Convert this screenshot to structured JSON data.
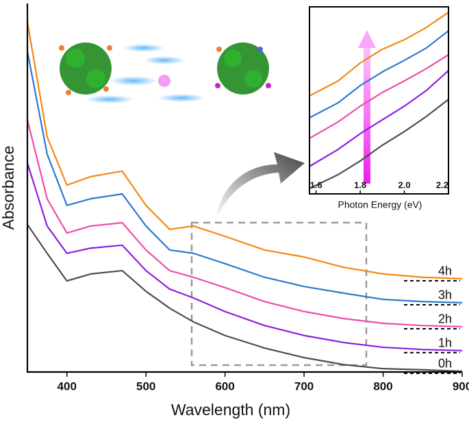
{
  "chart_data": [
    {
      "type": "line",
      "x_label": "Wavelength (nm)",
      "y_label": "Absorbance",
      "x": [
        350,
        375,
        400,
        430,
        470,
        500,
        530,
        560,
        600,
        650,
        700,
        750,
        800,
        850,
        900
      ],
      "xlim": [
        350,
        900
      ],
      "xticks": [
        400,
        500,
        600,
        700,
        800,
        900
      ],
      "ylim": [
        0,
        1
      ],
      "series": [
        {
          "name": "4h",
          "color": "#f5870f",
          "values": [
            0.95,
            0.638,
            0.507,
            0.53,
            0.545,
            0.452,
            0.387,
            0.396,
            0.368,
            0.331,
            0.312,
            0.284,
            0.266,
            0.257,
            0.253
          ]
        },
        {
          "name": "3h",
          "color": "#2b78d0",
          "values": [
            0.87,
            0.591,
            0.452,
            0.47,
            0.483,
            0.396,
            0.331,
            0.322,
            0.294,
            0.257,
            0.232,
            0.214,
            0.197,
            0.191,
            0.188
          ]
        },
        {
          "name": "2h",
          "color": "#f04aa8",
          "values": [
            0.684,
            0.47,
            0.377,
            0.396,
            0.405,
            0.331,
            0.275,
            0.257,
            0.229,
            0.191,
            0.164,
            0.145,
            0.132,
            0.126,
            0.123
          ]
        },
        {
          "name": "1h",
          "color": "#8a1ee0",
          "values": [
            0.567,
            0.396,
            0.322,
            0.336,
            0.344,
            0.275,
            0.225,
            0.201,
            0.164,
            0.126,
            0.099,
            0.08,
            0.067,
            0.061,
            0.058
          ]
        },
        {
          "name": "0h",
          "color": "#4d4d4d",
          "values": [
            0.4,
            0.322,
            0.247,
            0.266,
            0.275,
            0.219,
            0.173,
            0.136,
            0.099,
            0.065,
            0.039,
            0.02,
            0.009,
            0.006,
            0.002
          ]
        }
      ]
    },
    {
      "type": "line",
      "x_label": "Photon Energy (eV)",
      "x": [
        1.57,
        1.7,
        1.8,
        1.9,
        2.0,
        2.1,
        2.2
      ],
      "xlim": [
        1.57,
        2.2
      ],
      "xticks": [
        1.6,
        1.8,
        {
          "value": 2.0,
          "label": "2.0"
        },
        2.2
      ],
      "ylim": [
        0,
        1
      ],
      "series": [
        {
          "color": "#f5870f",
          "values": [
            0.524,
            0.604,
            0.7,
            0.773,
            0.824,
            0.89,
            0.971
          ]
        },
        {
          "color": "#2b78d0",
          "values": [
            0.407,
            0.487,
            0.579,
            0.652,
            0.714,
            0.78,
            0.872
          ]
        },
        {
          "color": "#f04aa8",
          "values": [
            0.297,
            0.385,
            0.469,
            0.542,
            0.604,
            0.67,
            0.744
          ]
        },
        {
          "color": "#8a1ee0",
          "values": [
            0.147,
            0.238,
            0.322,
            0.396,
            0.469,
            0.553,
            0.659
          ]
        },
        {
          "color": "#4d4d4d",
          "values": [
            0.029,
            0.103,
            0.176,
            0.26,
            0.333,
            0.414,
            0.505
          ]
        }
      ]
    }
  ]
}
